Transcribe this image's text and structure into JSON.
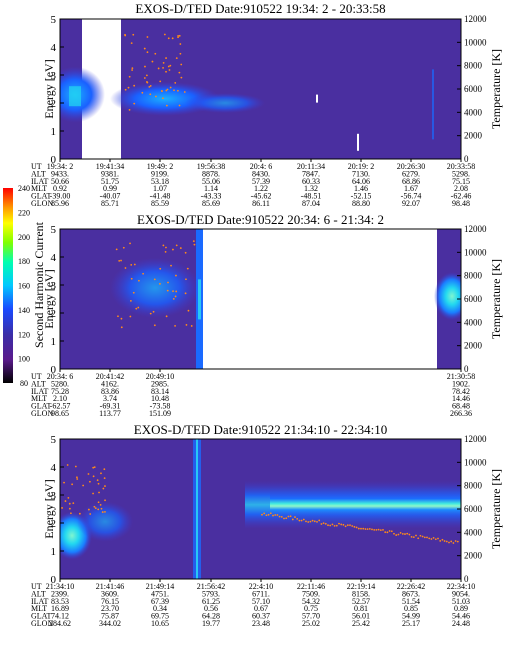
{
  "colors": {
    "background_bins": "#4a2fa0",
    "colorbar": [
      "#000000",
      "#5a1a8c",
      "#3a2ea8",
      "#1a4aff",
      "#00c8ff",
      "#00ffb0",
      "#7fff00",
      "#ffff00",
      "#ff9900",
      "#ff0000"
    ]
  },
  "colorbar": {
    "label": "Second Harmonic Current",
    "ticks": [
      "80",
      "100",
      "120",
      "140",
      "160",
      "180",
      "200",
      "220",
      "240"
    ]
  },
  "chart_data": [
    {
      "type": "heatmap",
      "title": "EXOS-D/TED   Date:910522  19:34: 2 - 20:33:58",
      "ylabel": "Energy [eV]",
      "y2label": "Temperature [K]",
      "ylim": [
        0,
        5
      ],
      "y2lim": [
        0,
        12000
      ],
      "yticks": [
        "0",
        "1",
        "2",
        "3",
        "4",
        "5"
      ],
      "y2ticks": [
        "0",
        "2000",
        "4000",
        "6000",
        "8000",
        "10000",
        "12000"
      ],
      "orbit_labels": [
        "UT",
        "ALT",
        "ILAT",
        "MLT",
        "GLAT",
        "GLON"
      ],
      "orbit_columns": [
        [
          "19:34: 2",
          "9433.",
          "50.66",
          "0.92",
          "-39.00",
          "85.96"
        ],
        [
          "19:41:34",
          "9381.",
          "51.75",
          "0.99",
          "-40.07",
          "85.71"
        ],
        [
          "19:49: 2",
          "9199.",
          "53.18",
          "1.07",
          "-41.48",
          "85.59"
        ],
        [
          "19:56:38",
          "8878.",
          "55.06",
          "1.14",
          "-43.33",
          "85.69"
        ],
        [
          "20:4: 6",
          "8430.",
          "57.39",
          "1.22",
          "-45.62",
          "86.11"
        ],
        [
          "20:11:34",
          "7847.",
          "60.33",
          "1.32",
          "-48.51",
          "87.04"
        ],
        [
          "20:19: 2",
          "7130.",
          "64.06",
          "1.46",
          "-52.15",
          "88.80"
        ],
        [
          "20:26:30",
          "6279.",
          "68.86",
          "1.67",
          "-56.74",
          "92.07"
        ],
        [
          "20:33:58",
          "5298.",
          "75.15",
          "2.08",
          "-62.46",
          "98.48"
        ]
      ]
    },
    {
      "type": "heatmap",
      "title": "EXOS-D/TED   Date:910522  20:34: 6 - 21:34: 2",
      "ylabel": "Energy [eV]",
      "y2label": "Temperature [K]",
      "ylim": [
        0,
        5
      ],
      "y2lim": [
        0,
        12000
      ],
      "yticks": [
        "0",
        "1",
        "2",
        "3",
        "4",
        "5"
      ],
      "y2ticks": [
        "0",
        "2000",
        "4000",
        "6000",
        "8000",
        "10000",
        "12000"
      ],
      "orbit_labels": [
        "UT",
        "ALT",
        "ILAT",
        "MLT",
        "GLAT",
        "GLON"
      ],
      "orbit_columns": [
        [
          "20:34: 6",
          "5280.",
          "75.28",
          "2.10",
          "-62.57",
          "98.65"
        ],
        [
          "20:41:42",
          "4162.",
          "83.86",
          "3.74",
          "-69.31",
          "113.77"
        ],
        [
          "20:49:10",
          "2985.",
          "83.14",
          "10.48",
          "-73.58",
          "151.09"
        ],
        [
          "21:30:58",
          "1902.",
          "78.42",
          "14.46",
          "68.48",
          "266.36"
        ]
      ]
    },
    {
      "type": "heatmap",
      "title": "EXOS-D/TED   Date:910522  21:34:10 - 22:34:10",
      "ylabel": "Energy [eV]",
      "y2label": "Temperature [K]",
      "ylim": [
        0,
        5
      ],
      "y2lim": [
        0,
        12000
      ],
      "yticks": [
        "0",
        "1",
        "2",
        "3",
        "4",
        "5"
      ],
      "y2ticks": [
        "0",
        "2000",
        "4000",
        "6000",
        "8000",
        "10000",
        "12000"
      ],
      "orbit_labels": [
        "UT",
        "ALT",
        "ILAT",
        "MLT",
        "GLAT",
        "GLON"
      ],
      "orbit_columns": [
        [
          "21:34:10",
          "2399.",
          "83.53",
          "16.89",
          "74.12",
          "284.62"
        ],
        [
          "21:41:46",
          "3609.",
          "76.15",
          "23.70",
          "75.87",
          "344.02"
        ],
        [
          "21:49:14",
          "4751.",
          "67.39",
          "0.34",
          "69.75",
          "10.65"
        ],
        [
          "21:56:42",
          "5793.",
          "61.25",
          "0.56",
          "64.28",
          "19.77"
        ],
        [
          "22:4:10",
          "6711.",
          "57.10",
          "0.67",
          "60.37",
          "23.48"
        ],
        [
          "22:11:46",
          "7509.",
          "54.32",
          "0.75",
          "57.70",
          "25.02"
        ],
        [
          "22:19:14",
          "8158.",
          "52.57",
          "0.81",
          "56.01",
          "25.42"
        ],
        [
          "22:26:42",
          "8673.",
          "51.54",
          "0.85",
          "54.99",
          "25.17"
        ],
        [
          "22:34:10",
          "9054.",
          "51.03",
          "0.89",
          "54.46",
          "24.48"
        ]
      ]
    }
  ]
}
